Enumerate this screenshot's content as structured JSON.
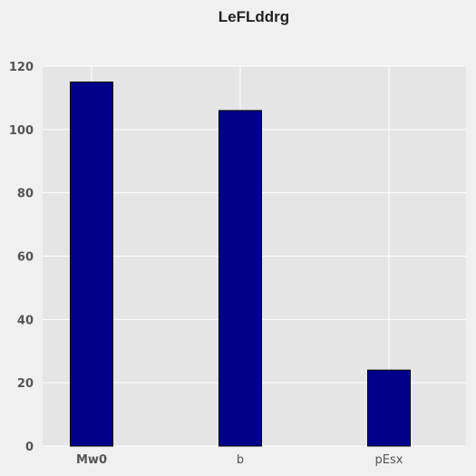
{
  "chart_data": {
    "type": "bar",
    "title": "LeFLddrg",
    "xlabel": "",
    "ylabel": "",
    "categories": [
      "Mw0",
      "b",
      "pEsx"
    ],
    "values": [
      115,
      106,
      24
    ],
    "ylim": [
      0,
      120
    ],
    "yticks": [
      "0",
      "20",
      "40",
      "60",
      "80",
      "100",
      "120"
    ],
    "grid": true,
    "legend": "none",
    "colors": {
      "bar_fill": "#00008b",
      "bar_edge": "#000000",
      "plot_background": "#e5e5e5",
      "grid": "#ffffff",
      "figure_background": "#f0f0f0"
    }
  }
}
